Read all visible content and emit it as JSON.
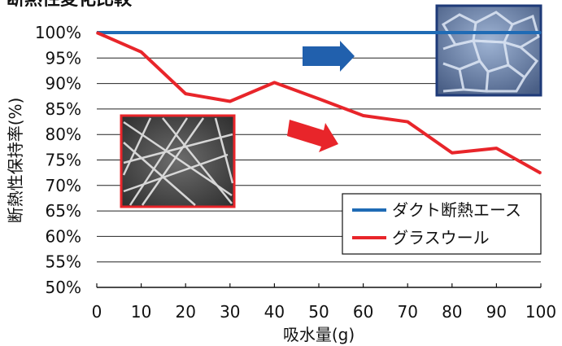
{
  "chart_data": {
    "type": "line",
    "title": "断熱性変化比較",
    "xlabel": "吸水量(g)",
    "ylabel": "断熱性保持率(%)",
    "x": [
      0,
      10,
      20,
      30,
      40,
      50,
      60,
      70,
      80,
      90,
      100
    ],
    "xlim": [
      0,
      100
    ],
    "ylim": [
      50,
      100
    ],
    "yticks": [
      "50%",
      "55%",
      "60%",
      "65%",
      "70%",
      "75%",
      "80%",
      "85%",
      "90%",
      "95%",
      "100%"
    ],
    "xticks": [
      "0",
      "10",
      "20",
      "30",
      "40",
      "50",
      "60",
      "70",
      "80",
      "90",
      "100"
    ],
    "grid": true,
    "legend_position": "bottom-right",
    "series": [
      {
        "name": "ダクト断熱エース",
        "color": "#1f6bb5",
        "values": [
          100,
          100,
          100,
          100,
          100,
          100,
          100,
          100,
          100,
          100,
          100
        ]
      },
      {
        "name": "グラスウール",
        "color": "#e8252a",
        "values": [
          100,
          96.2,
          88.0,
          86.5,
          90.2,
          87.0,
          83.7,
          82.5,
          76.4,
          77.3,
          72.4
        ]
      }
    ],
    "insets": [
      {
        "name": "foam-photo",
        "border": "#1e3a78",
        "arrow_color": "#2160ad"
      },
      {
        "name": "fiber-photo",
        "border": "#e8252a",
        "arrow_color": "#e8252a"
      }
    ]
  }
}
